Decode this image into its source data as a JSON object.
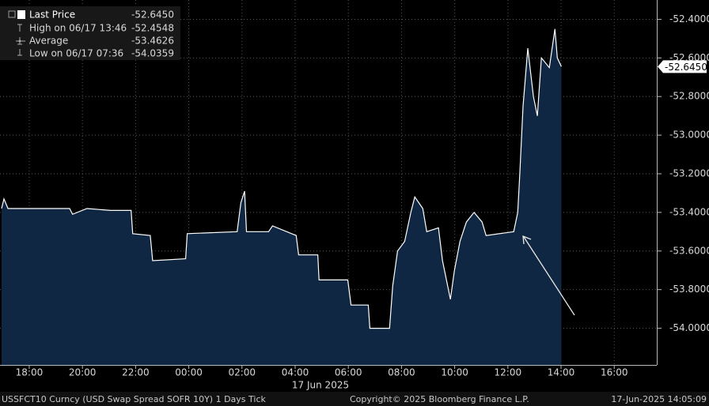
{
  "chart_data": {
    "type": "area",
    "x_label": "17 Jun 2025",
    "x": [
      -7.04,
      -6.95,
      -6.8,
      -4.48,
      -4.37,
      -3.83,
      -2.94,
      -2.17,
      -2.11,
      -1.45,
      -1.36,
      -0.12,
      -0.06,
      1.82,
      1.96,
      2.1,
      2.17,
      3.0,
      3.15,
      4.04,
      4.13,
      4.85,
      4.9,
      5.98,
      6.1,
      6.75,
      6.81,
      7.55,
      7.67,
      7.85,
      8.12,
      8.35,
      8.5,
      8.8,
      8.95,
      9.39,
      9.54,
      9.84,
      9.99,
      10.2,
      10.44,
      10.73,
      11.03,
      11.18,
      12.22,
      12.37,
      12.45,
      12.57,
      12.75,
      12.96,
      13.11,
      13.26,
      13.56,
      13.77,
      13.86,
      14.01
    ],
    "series": [
      {
        "name": "Last Price",
        "color": "#ffffff",
        "values": [
          -53.38,
          -53.33,
          -53.38,
          -53.38,
          -53.41,
          -53.38,
          -53.39,
          -53.39,
          -53.51,
          -53.52,
          -53.65,
          -53.64,
          -53.51,
          -53.5,
          -53.35,
          -53.29,
          -53.5,
          -53.5,
          -53.47,
          -53.52,
          -53.62,
          -53.62,
          -53.75,
          -53.75,
          -53.88,
          -53.88,
          -54.0,
          -54.0,
          -53.78,
          -53.6,
          -53.55,
          -53.4,
          -53.32,
          -53.38,
          -53.5,
          -53.48,
          -53.65,
          -53.85,
          -53.7,
          -53.55,
          -53.45,
          -53.4,
          -53.45,
          -53.52,
          -53.5,
          -53.4,
          -53.2,
          -52.85,
          -52.55,
          -52.8,
          -52.9,
          -52.6,
          -52.65,
          -52.45,
          -52.6,
          -52.645
        ]
      }
    ],
    "xlim": [
      -7.1,
      17.6
    ],
    "xticks": [
      {
        "value": -6,
        "label": "18:00"
      },
      {
        "value": -4,
        "label": "20:00"
      },
      {
        "value": -2,
        "label": "22:00"
      },
      {
        "value": 0,
        "label": "00:00"
      },
      {
        "value": 2,
        "label": "02:00"
      },
      {
        "value": 4,
        "label": "04:00"
      },
      {
        "value": 6,
        "label": "06:00"
      },
      {
        "value": 8,
        "label": "08:00"
      },
      {
        "value": 10,
        "label": "10:00"
      },
      {
        "value": 12,
        "label": "12:00"
      },
      {
        "value": 14,
        "label": "14:00"
      },
      {
        "value": 16,
        "label": "16:00"
      }
    ],
    "ylim": [
      -54.19,
      -52.3
    ],
    "yticks": [
      {
        "value": -52.4,
        "label": "-52.4000"
      },
      {
        "value": -52.6,
        "label": "-52.6000"
      },
      {
        "value": -52.8,
        "label": "-52.8000"
      },
      {
        "value": -53.0,
        "label": "-53.0000"
      },
      {
        "value": -53.2,
        "label": "-53.2000"
      },
      {
        "value": -53.4,
        "label": "-53.4000"
      },
      {
        "value": -53.6,
        "label": "-53.6000"
      },
      {
        "value": -53.8,
        "label": "-53.8000"
      },
      {
        "value": -54.0,
        "label": "-54.0000"
      }
    ],
    "grid": true,
    "area_color": "#0f2742",
    "last_price_tag": "-52.6450",
    "legend": [
      {
        "label": "Last Price",
        "value": "-52.6450"
      },
      {
        "label": "High on 06/17 13:46",
        "value": "-52.4548"
      },
      {
        "label": "Average",
        "value": "-53.4626"
      },
      {
        "label": "Low on 06/17 07:36",
        "value": "-54.0359"
      }
    ]
  },
  "footer": {
    "left": "USSFCT10 Curncy (USD Swap Spread SOFR 10Y) 1 Days  Tick",
    "center": "Copyright© 2025 Bloomberg Finance L.P.",
    "right": "17-Jun-2025 14:05:09"
  }
}
